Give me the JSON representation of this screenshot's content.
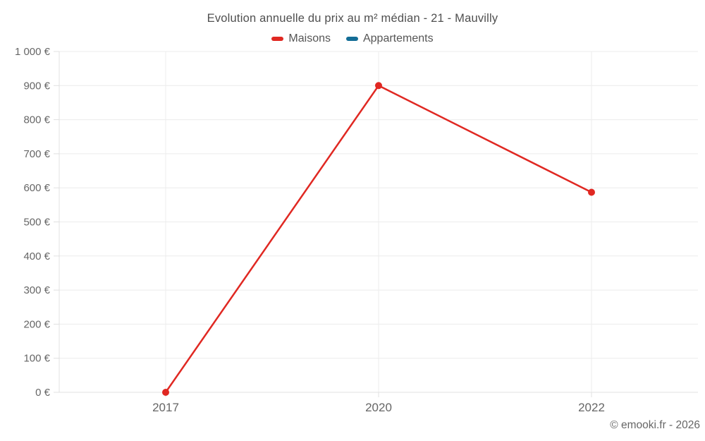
{
  "title": "Evolution annuelle du prix au m² médian - 21 - Mauvilly",
  "legend": {
    "items": [
      {
        "label": "Maisons",
        "color": "#e02822"
      },
      {
        "label": "Appartements",
        "color": "#136d96"
      }
    ]
  },
  "footer": {
    "copyright": "© emooki.fr - 2026"
  },
  "colors": {
    "grid": "#ececec",
    "axis": "#e0e0e0",
    "tick_text": "#666666",
    "maisons": "#e02822",
    "appartements": "#136d96"
  },
  "chart_data": {
    "type": "line",
    "title": "Evolution annuelle du prix au m² médian - 21 - Mauvilly",
    "categories": [
      "2017",
      "2020",
      "2022"
    ],
    "series": [
      {
        "name": "Maisons",
        "color": "#e02822",
        "values": [
          0,
          900,
          587
        ]
      },
      {
        "name": "Appartements",
        "color": "#136d96",
        "values": [
          null,
          null,
          null
        ]
      }
    ],
    "xlabel": "",
    "ylabel": "",
    "ylim": [
      0,
      1000
    ],
    "ytick_step": 100,
    "y_tick_labels": [
      "0 €",
      "100 €",
      "200 €",
      "300 €",
      "400 €",
      "500 €",
      "600 €",
      "700 €",
      "800 €",
      "900 €",
      "1 000 €"
    ],
    "grid": true,
    "legend_position": "top"
  }
}
